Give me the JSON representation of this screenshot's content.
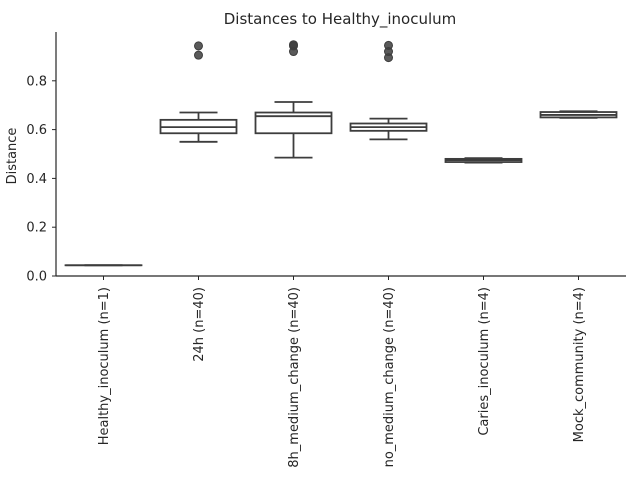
{
  "chart_data": {
    "type": "box",
    "title": "Distances to Healthy_inoculum",
    "xlabel": "",
    "ylabel": "Distance",
    "ylim": [
      0,
      1.0
    ],
    "yticks": [
      0.0,
      0.2,
      0.4,
      0.6,
      0.8
    ],
    "ytick_labels": [
      "0.0",
      "0.2",
      "0.4",
      "0.6",
      "0.8"
    ],
    "grid": false,
    "categories": [
      "Healthy_inoculum (n=1)",
      "24h (n=40)",
      "8h_medium_change (n=40)",
      "no_medium_change (n=40)",
      "Caries_inoculum (n=4)",
      "Mock_community (n=4)"
    ],
    "boxes": [
      {
        "whisker_low": 0.044,
        "q1": 0.044,
        "median": 0.044,
        "q3": 0.044,
        "whisker_high": 0.044,
        "outliers": []
      },
      {
        "whisker_low": 0.55,
        "q1": 0.585,
        "median": 0.61,
        "q3": 0.64,
        "whisker_high": 0.67,
        "outliers": [
          0.905,
          0.943
        ]
      },
      {
        "whisker_low": 0.485,
        "q1": 0.585,
        "median": 0.655,
        "q3": 0.67,
        "whisker_high": 0.713,
        "outliers": [
          0.92,
          0.943,
          0.948
        ]
      },
      {
        "whisker_low": 0.56,
        "q1": 0.595,
        "median": 0.61,
        "q3": 0.625,
        "whisker_high": 0.645,
        "outliers": [
          0.895,
          0.92,
          0.945
        ]
      },
      {
        "whisker_low": 0.465,
        "q1": 0.467,
        "median": 0.475,
        "q3": 0.48,
        "whisker_high": 0.483,
        "outliers": []
      },
      {
        "whisker_low": 0.648,
        "q1": 0.65,
        "median": 0.66,
        "q3": 0.672,
        "whisker_high": 0.675,
        "outliers": []
      }
    ],
    "colors": {
      "box_fill": "#ffffff",
      "box_edge": "#3d3d3d",
      "outlier": "#3d3d3d",
      "axis": "#262626",
      "text": "#262626"
    }
  }
}
